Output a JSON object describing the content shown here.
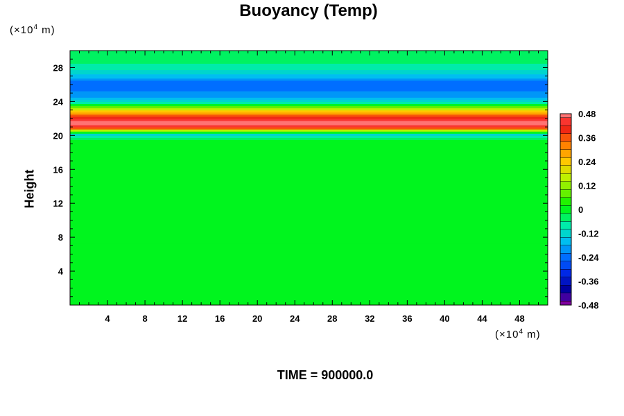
{
  "chart_data": {
    "type": "heatmap",
    "title": "Buoyancy (Temp)",
    "ylabel": "Height",
    "xlabel": "",
    "x_unit": {
      "prefix": "(×10",
      "exp": "4",
      "suffix": " m)"
    },
    "y_unit": {
      "prefix": "(×10",
      "exp": "4",
      "suffix": " m)"
    },
    "xlim": [
      0,
      51
    ],
    "ylim": [
      0,
      30
    ],
    "x_ticks": [
      4,
      8,
      12,
      16,
      20,
      24,
      28,
      32,
      36,
      40,
      44,
      48
    ],
    "y_ticks": [
      4,
      8,
      12,
      16,
      20,
      24,
      28
    ],
    "colorbar": {
      "range": [
        -0.48,
        0.48
      ],
      "step": 0.04,
      "tick_values": [
        0.48,
        0.36,
        0.24,
        0.12,
        0,
        -0.12,
        -0.24,
        -0.36,
        -0.48
      ],
      "tick_labels": [
        "0.48",
        "0.36",
        "0.24",
        "0.12",
        "0",
        "-0.12",
        "-0.24",
        "-0.36",
        "-0.48"
      ]
    },
    "field_profile": {
      "description_units": "height (×10^4 m) vs buoyancy value, approximately uniform in x",
      "height": [
        0,
        19.4,
        19.9,
        20.2,
        20.5,
        21.0,
        21.5,
        22.0,
        22.6,
        23.2,
        23.8,
        24.5,
        25.5,
        26.5,
        27.2,
        28.0,
        28.6,
        30.0
      ],
      "value": [
        0.0,
        0.0,
        -0.08,
        -0.14,
        0.08,
        0.44,
        0.48,
        0.42,
        0.3,
        0.14,
        -0.06,
        -0.18,
        -0.24,
        -0.22,
        -0.14,
        -0.08,
        -0.06,
        -0.06
      ]
    }
  },
  "footer": {
    "time_text": "TIME = 900000.0"
  }
}
